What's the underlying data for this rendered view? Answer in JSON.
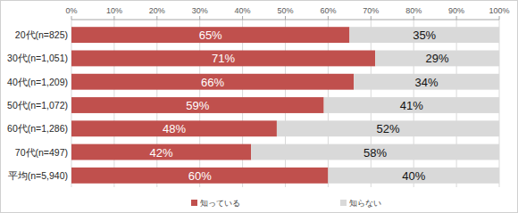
{
  "chart_data": {
    "type": "bar",
    "orientation": "horizontal",
    "stacked": true,
    "data_labels": true,
    "grid": true,
    "legend": "bottom",
    "categories": [
      "20代(n=825)",
      "30代(n=1,051)",
      "40代(n=1,209)",
      "50代(n=1,072)",
      "60代(n=1,286)",
      "70代(n=497)",
      "平均(n=5,940)"
    ],
    "series": [
      {
        "name": "知っている",
        "color": "#c0504d",
        "values": [
          65,
          71,
          66,
          59,
          48,
          42,
          60
        ],
        "value_labels": [
          "65%",
          "71%",
          "66%",
          "59%",
          "48%",
          "42%",
          "60%"
        ]
      },
      {
        "name": "知らない",
        "color": "#d9d9d9",
        "values": [
          35,
          29,
          34,
          41,
          52,
          58,
          40
        ],
        "value_labels": [
          "35%",
          "29%",
          "34%",
          "41%",
          "52%",
          "58%",
          "40%"
        ]
      }
    ],
    "xlim": [
      0,
      100
    ],
    "xticks": [
      {
        "value": 0,
        "label": "0%"
      },
      {
        "value": 10,
        "label": "10%"
      },
      {
        "value": 20,
        "label": "20%"
      },
      {
        "value": 30,
        "label": "30%"
      },
      {
        "value": 40,
        "label": "40%"
      },
      {
        "value": 50,
        "label": "50%"
      },
      {
        "value": 60,
        "label": "60%"
      },
      {
        "value": 70,
        "label": "70%"
      },
      {
        "value": 80,
        "label": "80%"
      },
      {
        "value": 90,
        "label": "90%"
      },
      {
        "value": 100,
        "label": "100%"
      }
    ]
  }
}
